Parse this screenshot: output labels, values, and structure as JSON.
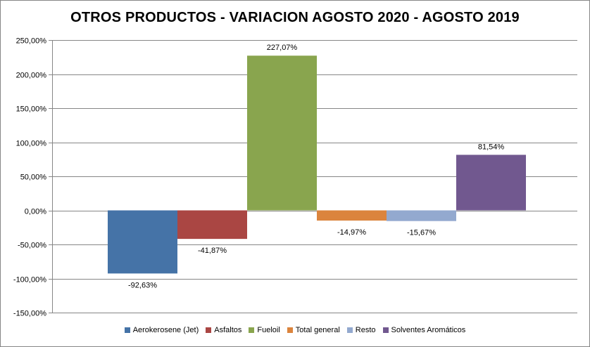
{
  "chart_data": {
    "type": "bar",
    "title": "OTROS PRODUCTOS - VARIACION AGOSTO 2020 - AGOSTO 2019",
    "xlabel": "",
    "ylabel": "",
    "ylim": [
      -150,
      250
    ],
    "ytick_values": [
      250,
      200,
      150,
      100,
      50,
      0,
      -50,
      -100,
      -150
    ],
    "ytick_labels": [
      "250,00%",
      "200,00%",
      "150,00%",
      "100,00%",
      "50,00%",
      "0,00%",
      "-50,00%",
      "-100,00%",
      "-150,00%"
    ],
    "grid": true,
    "legend_position": "bottom",
    "series": [
      {
        "name": "Aerokerosene (Jet)",
        "value": -92.63,
        "label": "-92,63%",
        "color": "#4573A7"
      },
      {
        "name": "Asfaltos",
        "value": -41.87,
        "label": "-41,87%",
        "color": "#AA4643"
      },
      {
        "name": "Fueloil",
        "value": 227.07,
        "label": "227,07%",
        "color": "#89A54E"
      },
      {
        "name": "Total general",
        "value": -14.97,
        "label": "-14,97%",
        "color": "#DB843D"
      },
      {
        "name": "Resto",
        "value": -15.67,
        "label": "-15,67%",
        "color": "#93A9CF"
      },
      {
        "name": "Solventes Aromáticos",
        "value": 81.54,
        "label": "81,54%",
        "color": "#71588F"
      }
    ]
  }
}
